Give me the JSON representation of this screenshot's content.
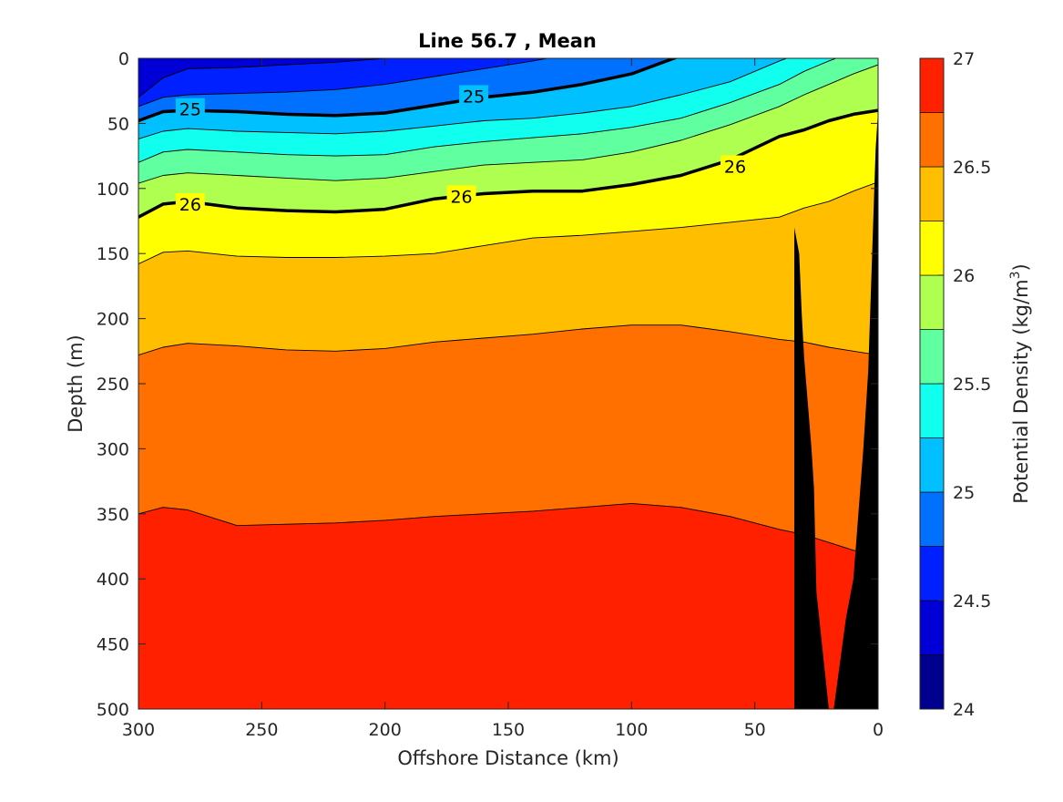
{
  "chart_data": {
    "type": "contour",
    "title": "Line 56.7 , Mean",
    "xlabel": "Offshore Distance (km)",
    "ylabel": "Depth (m)",
    "colorbar_label": "Potential Density (kg/m",
    "colorbar_label_sup": "3",
    "colorbar_label_end": ")",
    "xlim": [
      300,
      0
    ],
    "ylim": [
      500,
      0
    ],
    "x_reversed": true,
    "y_reversed": true,
    "x_ticks": [
      300,
      250,
      200,
      150,
      100,
      50,
      0
    ],
    "x_tick_labels": [
      "300",
      "250",
      "200",
      "150",
      "100",
      "50",
      "0"
    ],
    "y_ticks": [
      0,
      50,
      100,
      150,
      200,
      250,
      300,
      350,
      400,
      450,
      500
    ],
    "y_tick_labels": [
      "0",
      "50",
      "100",
      "150",
      "200",
      "250",
      "300",
      "350",
      "400",
      "450",
      "500"
    ],
    "clim": [
      24,
      27
    ],
    "colorbar_ticks": [
      24,
      24.5,
      25,
      25.5,
      26,
      26.5,
      27
    ],
    "colorbar_tick_labels": [
      "24",
      "24.5",
      "25",
      "25.5",
      "26",
      "26.5",
      "27"
    ],
    "levels": [
      24,
      24.25,
      24.5,
      24.75,
      25,
      25.25,
      25.5,
      25.75,
      26,
      26.25,
      26.5,
      26.75,
      27
    ],
    "colors": [
      "#00008f",
      "#0000d6",
      "#0020ff",
      "#0070ff",
      "#00c0ff",
      "#10ffef",
      "#60ff9f",
      "#afff50",
      "#ffff00",
      "#ffbf00",
      "#ff7000",
      "#ff2000",
      "#cf0000"
    ],
    "background_color": "#cf0000",
    "bathymetry_color": "#000000",
    "distance_km": [
      300,
      290,
      280,
      260,
      240,
      220,
      200,
      180,
      160,
      140,
      120,
      100,
      80,
      60,
      40,
      30,
      20,
      10,
      0
    ],
    "isopycnals": [
      {
        "sigma": 24.5,
        "depth_m": [
          30,
          15,
          8,
          7,
          5,
          3,
          0,
          -5,
          -10,
          -10,
          -10,
          -10,
          -10,
          -10,
          -10,
          -10,
          -10,
          -10,
          -10
        ]
      },
      {
        "sigma": 24.75,
        "depth_m": [
          37,
          30,
          28,
          27,
          26,
          24,
          20,
          14,
          8,
          2,
          -5,
          -10,
          -10,
          -10,
          -10,
          -10,
          -10,
          -10,
          -10
        ]
      },
      {
        "sigma": 25.0,
        "depth_m": [
          48,
          41,
          40,
          41,
          43,
          44,
          42,
          36,
          30,
          26,
          20,
          12,
          -2,
          -10,
          -10,
          -10,
          -10,
          -10,
          -10
        ]
      },
      {
        "sigma": 25.25,
        "depth_m": [
          62,
          56,
          54,
          56,
          57,
          58,
          56,
          52,
          48,
          46,
          42,
          37,
          28,
          18,
          2,
          -5,
          -10,
          -10,
          -10
        ]
      },
      {
        "sigma": 25.5,
        "depth_m": [
          80,
          72,
          70,
          72,
          74,
          75,
          74,
          68,
          64,
          61,
          58,
          53,
          46,
          34,
          20,
          10,
          2,
          -5,
          -10
        ]
      },
      {
        "sigma": 25.75,
        "depth_m": [
          96,
          90,
          88,
          90,
          92,
          94,
          92,
          87,
          82,
          80,
          78,
          72,
          63,
          51,
          37,
          28,
          20,
          12,
          5
        ]
      },
      {
        "sigma": 26.0,
        "depth_m": [
          122,
          112,
          110,
          115,
          117,
          118,
          116,
          108,
          104,
          102,
          102,
          97,
          90,
          78,
          60,
          55,
          48,
          43,
          40
        ]
      },
      {
        "sigma": 26.25,
        "depth_m": [
          158,
          149,
          148,
          152,
          153,
          153,
          152,
          150,
          144,
          138,
          136,
          133,
          130,
          126,
          122,
          115,
          110,
          102,
          95
        ]
      },
      {
        "sigma": 26.5,
        "depth_m": [
          228,
          222,
          219,
          221,
          224,
          225,
          223,
          218,
          215,
          212,
          208,
          205,
          205,
          210,
          216,
          218,
          222,
          225,
          228
        ]
      },
      {
        "sigma": 26.75,
        "depth_m": [
          350,
          345,
          347,
          359,
          358,
          357,
          355,
          352,
          350,
          348,
          345,
          342,
          345,
          352,
          362,
          366,
          372,
          378,
          382
        ]
      }
    ],
    "contour_labels": [
      {
        "text": "25",
        "x_km": 279,
        "depth_m": 39
      },
      {
        "text": "25",
        "x_km": 164,
        "depth_m": 29
      },
      {
        "text": "26",
        "x_km": 279,
        "depth_m": 112
      },
      {
        "text": "26",
        "x_km": 169,
        "depth_m": 106
      },
      {
        "text": "26",
        "x_km": 58,
        "depth_m": 83
      }
    ],
    "bold_levels": [
      25,
      26
    ],
    "bathymetry": {
      "distance_km": [
        0,
        0,
        1,
        4,
        6,
        10,
        13,
        18,
        20,
        25,
        26,
        27,
        30,
        31,
        32,
        34,
        34,
        0
      ],
      "depth_m": [
        500,
        40,
        70,
        240,
        300,
        400,
        430,
        500,
        500,
        410,
        330,
        300,
        230,
        195,
        150,
        130,
        500,
        500
      ]
    }
  }
}
